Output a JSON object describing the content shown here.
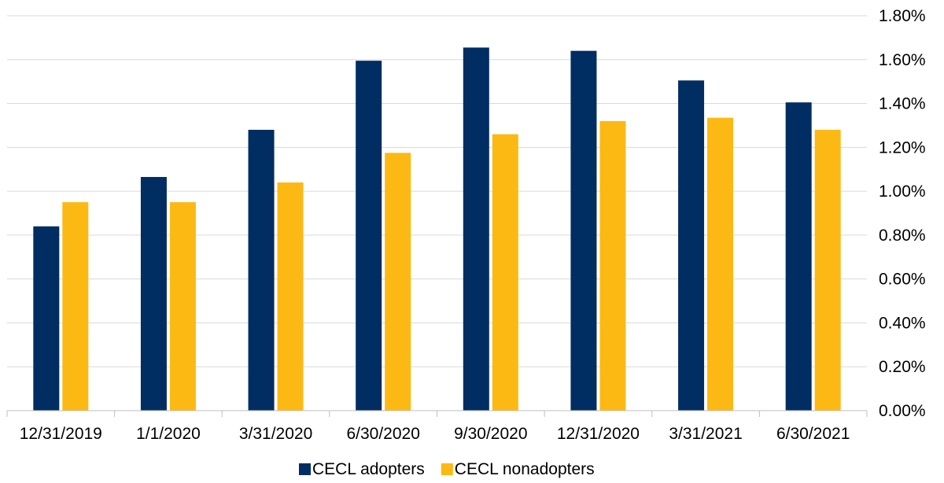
{
  "chart_data": {
    "type": "bar",
    "categories": [
      "12/31/2019",
      "1/1/2020",
      "3/31/2020",
      "6/30/2020",
      "9/30/2020",
      "12/31/2020",
      "3/31/2021",
      "6/30/2021"
    ],
    "series": [
      {
        "name": "CECL adopters",
        "color": "#002D62",
        "values": [
          0.84,
          1.065,
          1.28,
          1.595,
          1.655,
          1.64,
          1.505,
          1.405
        ]
      },
      {
        "name": "CECL nonadopters",
        "color": "#FDB913",
        "values": [
          0.95,
          0.95,
          1.04,
          1.175,
          1.26,
          1.32,
          1.335,
          1.28
        ]
      }
    ],
    "ylim": [
      0,
      1.8
    ],
    "yticks": [
      "0.00%",
      "0.20%",
      "0.40%",
      "0.60%",
      "0.80%",
      "1.00%",
      "1.20%",
      "1.40%",
      "1.60%",
      "1.80%"
    ],
    "grid": true,
    "y_axis_side": "right",
    "legend_position": "bottom"
  }
}
